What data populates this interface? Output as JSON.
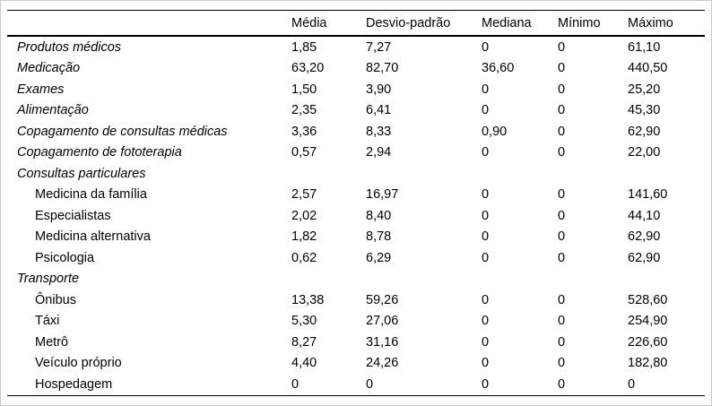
{
  "page": {
    "background": "#ffffff",
    "frame_border_color": "#c9c9c9",
    "rule_color": "#000000",
    "text_color": "#000000"
  },
  "table": {
    "columns": [
      "",
      "Média",
      "Desvio-padrão",
      "Mediana",
      "Mínimo",
      "Máximo"
    ],
    "rows": [
      {
        "label": "Produtos médicos",
        "style": "category",
        "values": [
          "1,85",
          "7,27",
          "0",
          "0",
          "61,10"
        ]
      },
      {
        "label": "Medicação",
        "style": "category",
        "values": [
          "63,20",
          "82,70",
          "36,60",
          "0",
          "440,50"
        ]
      },
      {
        "label": "Exames",
        "style": "category",
        "values": [
          "1,50",
          "3,90",
          "0",
          "0",
          "25,20"
        ]
      },
      {
        "label": "Alimentação",
        "style": "category",
        "values": [
          "2,35",
          "6,41",
          "0",
          "0",
          "45,30"
        ]
      },
      {
        "label": "Copagamento de consultas médicas",
        "style": "category",
        "values": [
          "3,36",
          "8,33",
          "0,90",
          "0",
          "62,90"
        ]
      },
      {
        "label": "Copagamento de fototerapia",
        "style": "category",
        "values": [
          "0,57",
          "2,94",
          "0",
          "0",
          "22,00"
        ]
      },
      {
        "label": "Consultas particulares",
        "style": "category",
        "values": [
          "",
          "",
          "",
          "",
          ""
        ]
      },
      {
        "label": "Medicina da família",
        "style": "sub",
        "values": [
          "2,57",
          "16,97",
          "0",
          "0",
          "141,60"
        ]
      },
      {
        "label": "Especialistas",
        "style": "sub",
        "values": [
          "2,02",
          "8,40",
          "0",
          "0",
          "44,10"
        ]
      },
      {
        "label": "Medicina alternativa",
        "style": "sub",
        "values": [
          "1,82",
          "8,78",
          "0",
          "0",
          "62,90"
        ]
      },
      {
        "label": "Psicologia",
        "style": "sub",
        "values": [
          "0,62",
          "6,29",
          "0",
          "0",
          "62,90"
        ]
      },
      {
        "label": "Transporte",
        "style": "category",
        "values": [
          "",
          "",
          "",
          "",
          ""
        ]
      },
      {
        "label": "Ônibus",
        "style": "sub",
        "values": [
          "13,38",
          "59,26",
          "0",
          "0",
          "528,60"
        ]
      },
      {
        "label": "Táxi",
        "style": "sub",
        "values": [
          "5,30",
          "27,06",
          "0",
          "0",
          "254,90"
        ]
      },
      {
        "label": "Metrô",
        "style": "sub",
        "values": [
          "8,27",
          "31,16",
          "0",
          "0",
          "226,60"
        ]
      },
      {
        "label": "Veículo próprio",
        "style": "sub",
        "values": [
          "4,40",
          "24,26",
          "0",
          "0",
          "182,80"
        ]
      },
      {
        "label": "Hospedagem",
        "style": "sub",
        "values": [
          "0",
          "0",
          "0",
          "0",
          "0"
        ]
      }
    ]
  }
}
